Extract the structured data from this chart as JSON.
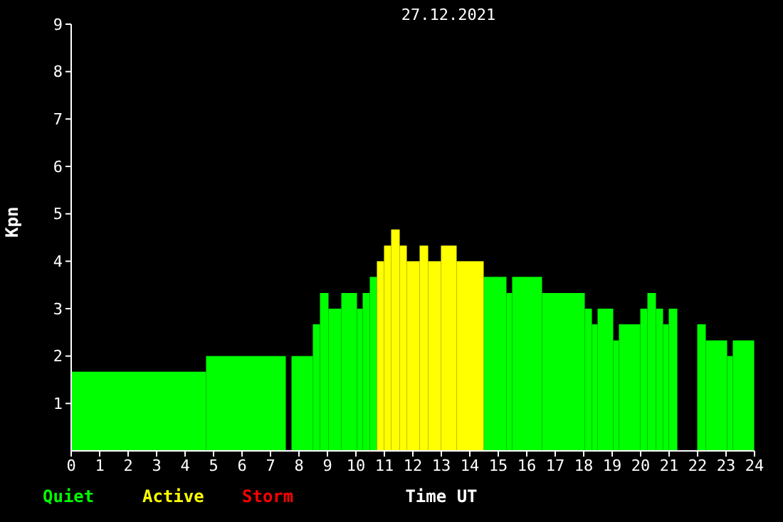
{
  "chart_data": {
    "type": "histogram",
    "title": "27.12.2021",
    "xlabel": "Time UT",
    "ylabel": "Kpn",
    "bins": [
      0,
      4.75,
      7.55,
      7.75,
      8.5,
      8.75,
      9.05,
      9.5,
      10.05,
      10.25,
      10.5,
      10.75,
      11.0,
      11.25,
      11.55,
      11.8,
      12.25,
      12.55,
      13.0,
      13.55,
      14.5,
      15.3,
      15.5,
      16.55,
      18.05,
      18.3,
      18.5,
      19.05,
      19.25,
      20.0,
      20.25,
      20.55,
      20.8,
      21.0,
      21.3,
      22.0,
      22.3,
      23.05,
      23.25,
      24
    ],
    "series": [
      {
        "name": "Quiet",
        "color": "#00ff00",
        "values": [
          1.67,
          2.0,
          null,
          2.0,
          2.67,
          3.33,
          3.0,
          3.33,
          3.0,
          3.33,
          3.67,
          null,
          null,
          null,
          null,
          null,
          null,
          null,
          null,
          null,
          3.67,
          3.33,
          3.67,
          3.33,
          3.0,
          2.67,
          3.0,
          2.33,
          2.67,
          3.0,
          3.33,
          3.0,
          2.67,
          3.0,
          null,
          2.67,
          2.33,
          2.0,
          2.33
        ]
      },
      {
        "name": "Active",
        "color": "#ffff00",
        "values": [
          null,
          null,
          null,
          null,
          null,
          null,
          null,
          null,
          null,
          null,
          null,
          4.0,
          4.33,
          4.67,
          4.33,
          4.0,
          4.33,
          4.0,
          4.33,
          4.0,
          null,
          null,
          null,
          null,
          null,
          null,
          null,
          null,
          null,
          null,
          null,
          null,
          null,
          null,
          null,
          null,
          null,
          null,
          null
        ]
      }
    ],
    "annotations": [
      "Storm"
    ],
    "xlim": [
      0,
      24
    ],
    "xticks": [
      0,
      1,
      2,
      3,
      4,
      5,
      6,
      7,
      8,
      9,
      10,
      11,
      12,
      13,
      14,
      15,
      16,
      17,
      18,
      19,
      20,
      21,
      22,
      23,
      24
    ],
    "ylim": [
      0,
      9
    ],
    "yticks": [
      1,
      2,
      3,
      4,
      5,
      6,
      7,
      8,
      9
    ],
    "grid": false,
    "legend": "bottom"
  }
}
